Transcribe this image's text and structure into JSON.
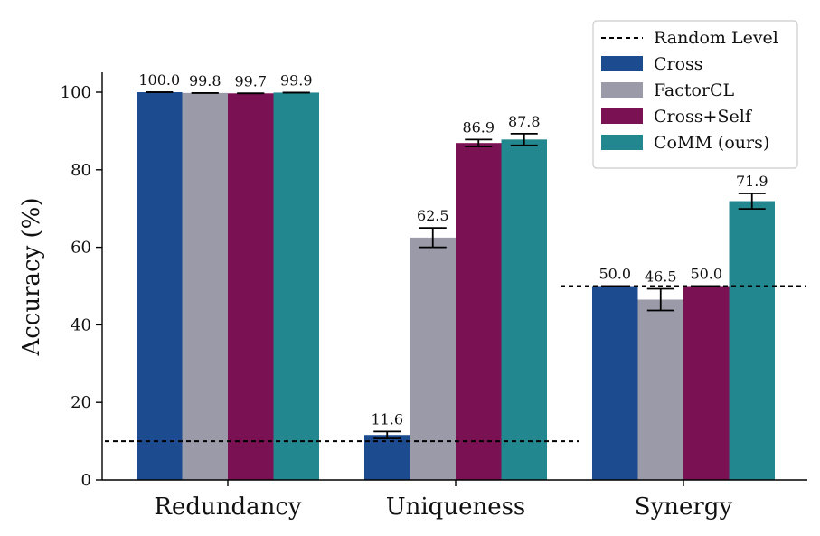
{
  "chart_data": {
    "type": "bar",
    "ylabel": "Accuracy (%)",
    "ylim": [
      0,
      105
    ],
    "yticks": [
      0,
      20,
      40,
      60,
      80,
      100
    ],
    "categories": [
      "Redundancy",
      "Uniqueness",
      "Synergy"
    ],
    "series": [
      {
        "name": "Cross",
        "color": "#1c4b8f",
        "values": [
          100.0,
          11.6,
          50.0
        ],
        "errors": [
          0,
          0.9,
          0
        ],
        "labels": [
          "100.0",
          "11.6",
          "50.0"
        ]
      },
      {
        "name": "FactorCL",
        "color": "#9a9aa9",
        "values": [
          99.8,
          62.5,
          46.5
        ],
        "errors": [
          0,
          2.5,
          2.8
        ],
        "labels": [
          "99.8",
          "62.5",
          "46.5"
        ]
      },
      {
        "name": "Cross+Self",
        "color": "#7a1152",
        "values": [
          99.7,
          86.9,
          50.0
        ],
        "errors": [
          0,
          0.9,
          0
        ],
        "labels": [
          "99.7",
          "86.9",
          "50.0"
        ]
      },
      {
        "name": "CoMM (ours)",
        "color": "#22878f",
        "values": [
          99.9,
          87.8,
          71.9
        ],
        "errors": [
          0,
          1.5,
          2.0
        ],
        "labels": [
          "99.9",
          "87.8",
          "71.9"
        ]
      }
    ],
    "reference_lines": [
      {
        "label": "Random Level",
        "style": "dashed",
        "segments": [
          {
            "value": 10,
            "categories": [
              "Redundancy",
              "Uniqueness"
            ]
          },
          {
            "value": 50,
            "categories": [
              "Synergy"
            ]
          }
        ]
      }
    ],
    "legend": {
      "placement": "top-right",
      "entries": [
        "Random Level",
        "Cross",
        "FactorCL",
        "Cross+Self",
        "CoMM (ours)"
      ]
    },
    "grid": false
  }
}
